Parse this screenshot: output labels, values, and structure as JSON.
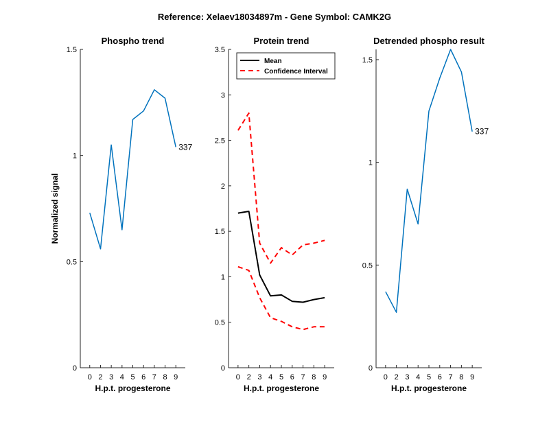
{
  "figure": {
    "suptitle": "Reference:  Xelaev18034897m - Gene Symbol:  CAMK2G"
  },
  "chart_data": [
    {
      "type": "line",
      "title": "Phospho trend",
      "xlabel": "H.p.t. progesterone",
      "ylabel": "Normalized signal",
      "x_ticks": [
        "0",
        "2",
        "3",
        "4",
        "5",
        "6",
        "7",
        "8",
        "9"
      ],
      "y_ticks": [
        "0",
        "0.5",
        "1",
        "1.5"
      ],
      "ylim": [
        0,
        1.5
      ],
      "series": [
        {
          "values": [
            0.73,
            0.56,
            1.05,
            0.65,
            1.17,
            1.21,
            1.31,
            1.27,
            1.04
          ],
          "color": "#0072BD"
        }
      ],
      "end_label": "337"
    },
    {
      "type": "line",
      "title": "Protein trend",
      "xlabel": "H.p.t. progesterone",
      "ylabel": "",
      "x_ticks": [
        "0",
        "2",
        "3",
        "4",
        "5",
        "6",
        "7",
        "8",
        "9"
      ],
      "y_ticks": [
        "0",
        "0.5",
        "1",
        "1.5",
        "2",
        "2.5",
        "3",
        "3.5"
      ],
      "ylim": [
        0,
        3.5
      ],
      "legend": {
        "placement": "top-left"
      },
      "series": [
        {
          "name": "Mean",
          "values": [
            1.7,
            1.72,
            1.02,
            0.79,
            0.8,
            0.73,
            0.72,
            0.75,
            0.77
          ],
          "color": "#000000",
          "dash": "solid"
        },
        {
          "name": "Confidence Interval",
          "values": [
            2.61,
            2.8,
            1.37,
            1.15,
            1.32,
            1.24,
            1.35,
            1.37,
            1.4
          ],
          "color": "#FF0000",
          "dash": "dashed"
        },
        {
          "name": "",
          "values": [
            1.11,
            1.07,
            0.77,
            0.55,
            0.51,
            0.45,
            0.42,
            0.45,
            0.45
          ],
          "color": "#FF0000",
          "dash": "dashed"
        }
      ]
    },
    {
      "type": "line",
      "title": "Detrended phospho result",
      "xlabel": "H.p.t. progesterone",
      "ylabel": "",
      "x_ticks": [
        "0",
        "2",
        "3",
        "4",
        "5",
        "6",
        "7",
        "8",
        "9"
      ],
      "y_ticks": [
        "0",
        "0.5",
        "1",
        "1.5"
      ],
      "ylim": [
        0,
        1.55
      ],
      "series": [
        {
          "values": [
            0.37,
            0.27,
            0.87,
            0.7,
            1.25,
            1.41,
            1.55,
            1.44,
            1.15
          ],
          "color": "#0072BD"
        }
      ],
      "end_label": "337"
    }
  ]
}
